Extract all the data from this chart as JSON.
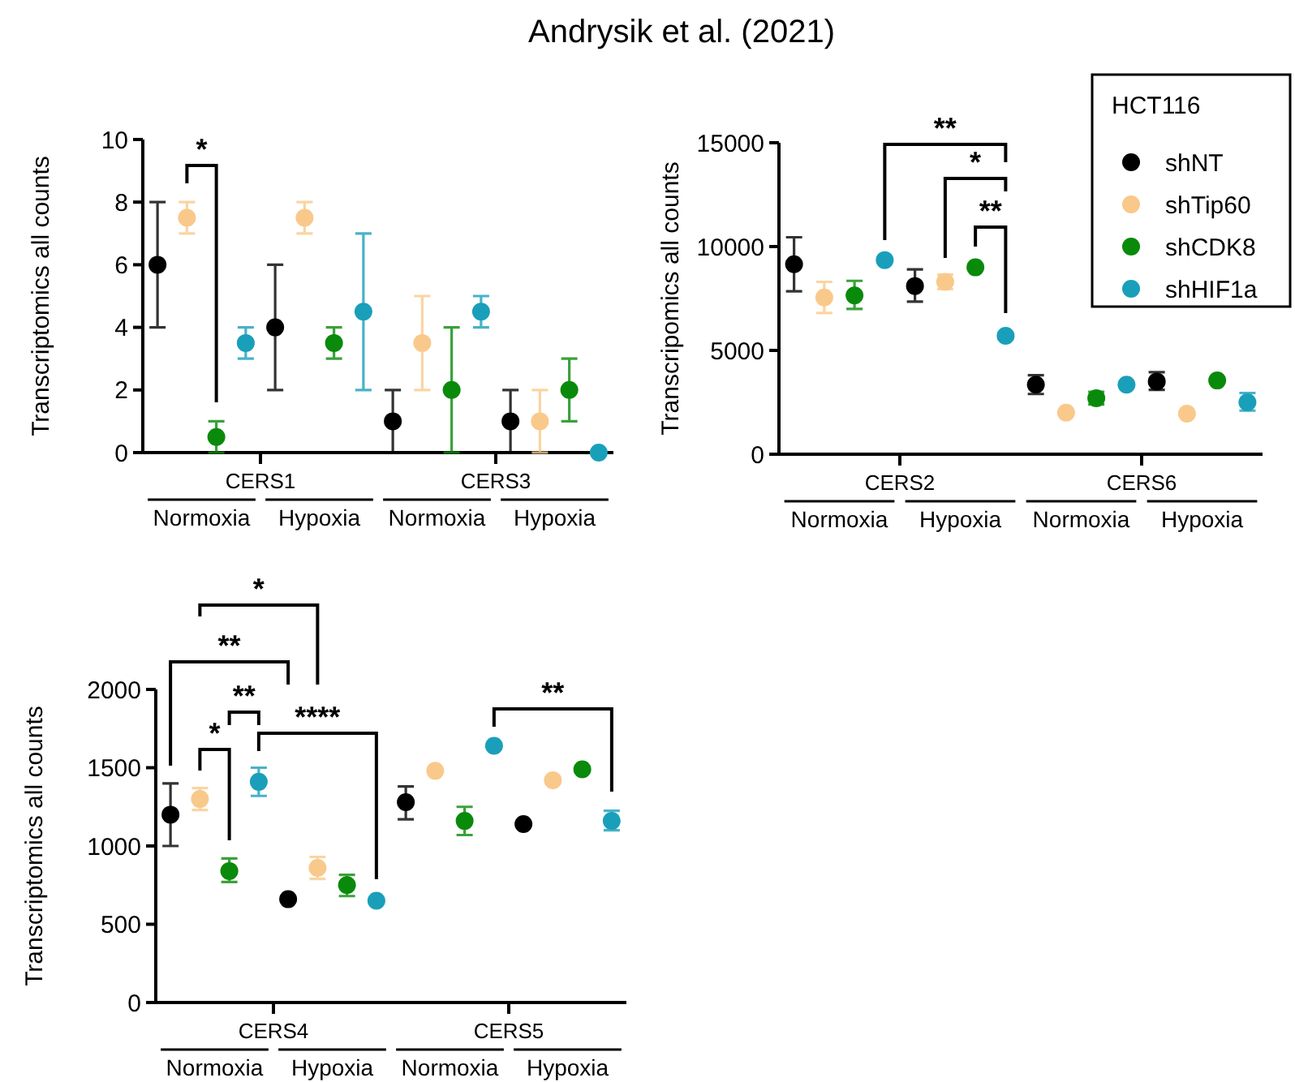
{
  "chart_data": [
    {
      "type": "scatter",
      "title": "Andrysik et al. (2021)",
      "ylabel": "Transcriptomics all counts",
      "categories": [
        null,
        null,
        null,
        null,
        null,
        null,
        null,
        null,
        null,
        null,
        null,
        null,
        null,
        null,
        null,
        null
      ],
      "ylim": [
        0,
        10
      ],
      "yticks": [
        0,
        2,
        4,
        6,
        8,
        10
      ],
      "marker": "circle",
      "annotations": [
        "CERS1",
        "CERS3",
        "Normoxia",
        "Hypoxia",
        "Normoxia",
        "Hypoxia",
        "*"
      ],
      "series": [
        {
          "color": "#000000",
          "values": [
            6,
            null,
            null,
            null,
            4,
            null,
            null,
            null,
            1,
            null,
            null,
            null,
            1,
            null,
            null,
            null
          ],
          "errors": [
            [
              4,
              8
            ],
            null,
            null,
            null,
            [
              2,
              6
            ],
            null,
            null,
            null,
            [
              0,
              2
            ],
            null,
            null,
            null,
            [
              0,
              2
            ],
            null,
            null,
            null
          ]
        },
        {
          "color": "#f9c98b",
          "values": [
            null,
            7.5,
            null,
            null,
            null,
            7.5,
            null,
            null,
            null,
            3.5,
            null,
            null,
            null,
            1,
            null,
            null
          ],
          "errors": [
            null,
            [
              7,
              8
            ],
            null,
            null,
            null,
            [
              7,
              8
            ],
            null,
            null,
            null,
            [
              2,
              5
            ],
            null,
            null,
            null,
            [
              0,
              2
            ],
            null,
            null
          ]
        },
        {
          "color": "#0a8a0a",
          "values": [
            null,
            null,
            0.5,
            null,
            null,
            null,
            3.5,
            null,
            null,
            null,
            2,
            null,
            null,
            null,
            2,
            null
          ],
          "errors": [
            null,
            null,
            [
              0,
              1
            ],
            null,
            null,
            null,
            [
              3,
              4
            ],
            null,
            null,
            null,
            [
              0,
              4
            ],
            null,
            null,
            null,
            [
              1,
              3
            ],
            null
          ]
        },
        {
          "color": "#1a9fba",
          "values": [
            null,
            null,
            null,
            3.5,
            null,
            null,
            null,
            4.5,
            null,
            null,
            null,
            4.5,
            null,
            null,
            null,
            0
          ],
          "errors": [
            null,
            null,
            null,
            [
              3,
              4
            ],
            null,
            null,
            null,
            [
              2,
              7
            ],
            null,
            null,
            null,
            [
              4,
              5
            ],
            null,
            null,
            null,
            null
          ]
        }
      ]
    },
    {
      "type": "scatter",
      "ylabel": "Transcripomics all counts",
      "categories": [
        null,
        null,
        null,
        null,
        null,
        null,
        null,
        null,
        null,
        null,
        null,
        null,
        null,
        null,
        null,
        null
      ],
      "ylim": [
        0,
        15000
      ],
      "yticks": [
        0,
        5000,
        10000,
        15000
      ],
      "marker": "circle",
      "legend": "right",
      "legend_title": "HCT116",
      "annotations": [
        "CERS2",
        "CERS6",
        "Normoxia",
        "Hypoxia",
        "Normoxia",
        "Hypoxia",
        "**",
        "*",
        "**"
      ],
      "series": [
        {
          "name": "shNT",
          "color": "#000000",
          "values": [
            9150,
            null,
            null,
            null,
            8100,
            null,
            null,
            null,
            3350,
            null,
            null,
            null,
            3500,
            null,
            null,
            null
          ],
          "errors": [
            [
              7850,
              10450
            ],
            null,
            null,
            null,
            [
              7350,
              8900
            ],
            null,
            null,
            null,
            [
              2900,
              3800
            ],
            null,
            null,
            null,
            [
              3100,
              3950
            ],
            null,
            null,
            null
          ]
        },
        {
          "name": "shTip60",
          "color": "#f9c98b",
          "values": [
            null,
            7550,
            null,
            null,
            null,
            8300,
            null,
            null,
            null,
            2000,
            null,
            null,
            null,
            1950,
            null,
            null
          ],
          "errors": [
            null,
            [
              6800,
              8300
            ],
            null,
            null,
            null,
            [
              7950,
              8650
            ],
            null,
            null,
            null,
            null,
            null,
            null,
            null,
            null,
            null,
            null
          ]
        },
        {
          "name": "shCDK8",
          "color": "#0a8a0a",
          "values": [
            null,
            null,
            7650,
            null,
            null,
            null,
            9000,
            null,
            null,
            null,
            2700,
            null,
            null,
            null,
            3550,
            null
          ],
          "errors": [
            null,
            null,
            [
              7000,
              8350
            ],
            null,
            null,
            null,
            null,
            null,
            null,
            null,
            [
              2400,
              3000
            ],
            null,
            null,
            null,
            null,
            null
          ]
        },
        {
          "name": "shHIF1a",
          "color": "#1a9fba",
          "values": [
            null,
            null,
            null,
            9350,
            null,
            null,
            null,
            5700,
            null,
            null,
            null,
            3350,
            null,
            null,
            null,
            2500
          ],
          "errors": [
            null,
            null,
            null,
            null,
            null,
            null,
            null,
            [
              5550,
              5850
            ],
            null,
            null,
            null,
            null,
            null,
            null,
            null,
            [
              2100,
              2950
            ]
          ]
        }
      ]
    },
    {
      "type": "scatter",
      "ylabel": "Transcriptomics all counts",
      "categories": [
        null,
        null,
        null,
        null,
        null,
        null,
        null,
        null,
        null,
        null,
        null,
        null,
        null,
        null,
        null,
        null
      ],
      "ylim": [
        0,
        2000
      ],
      "yticks": [
        0,
        500,
        1000,
        1500,
        2000
      ],
      "marker": "circle",
      "annotations": [
        "CERS4",
        "CERS5",
        "Normoxia",
        "Hypoxia",
        "Normoxia",
        "Hypoxia",
        "*",
        "**",
        "**",
        "*",
        "****",
        "**"
      ],
      "series": [
        {
          "color": "#000000",
          "values": [
            1200,
            null,
            null,
            null,
            660,
            null,
            null,
            null,
            1280,
            null,
            null,
            null,
            1140,
            null,
            null,
            null
          ],
          "errors": [
            [
              1000,
              1400
            ],
            null,
            null,
            null,
            null,
            null,
            null,
            null,
            [
              1170,
              1380
            ],
            null,
            null,
            null,
            null,
            null,
            null,
            null
          ]
        },
        {
          "color": "#f9c98b",
          "values": [
            null,
            1300,
            null,
            null,
            null,
            860,
            null,
            null,
            null,
            1480,
            null,
            null,
            null,
            1420,
            null,
            null
          ],
          "errors": [
            null,
            [
              1230,
              1370
            ],
            null,
            null,
            null,
            [
              790,
              930
            ],
            null,
            null,
            null,
            null,
            null,
            null,
            null,
            [
              1400,
              1440
            ],
            null,
            null
          ]
        },
        {
          "color": "#0a8a0a",
          "values": [
            null,
            null,
            840,
            null,
            null,
            null,
            750,
            null,
            null,
            null,
            1160,
            null,
            null,
            null,
            1490,
            null
          ],
          "errors": [
            null,
            null,
            [
              770,
              920
            ],
            null,
            null,
            null,
            [
              680,
              815
            ],
            null,
            null,
            null,
            [
              1070,
              1250
            ],
            null,
            null,
            null,
            null,
            null
          ]
        },
        {
          "color": "#1a9fba",
          "values": [
            null,
            null,
            null,
            1410,
            null,
            null,
            null,
            650,
            null,
            null,
            null,
            1640,
            null,
            null,
            null,
            1160
          ],
          "errors": [
            null,
            null,
            null,
            [
              1320,
              1500
            ],
            null,
            null,
            null,
            null,
            null,
            null,
            null,
            null,
            null,
            null,
            null,
            [
              1100,
              1225
            ]
          ]
        }
      ]
    }
  ]
}
